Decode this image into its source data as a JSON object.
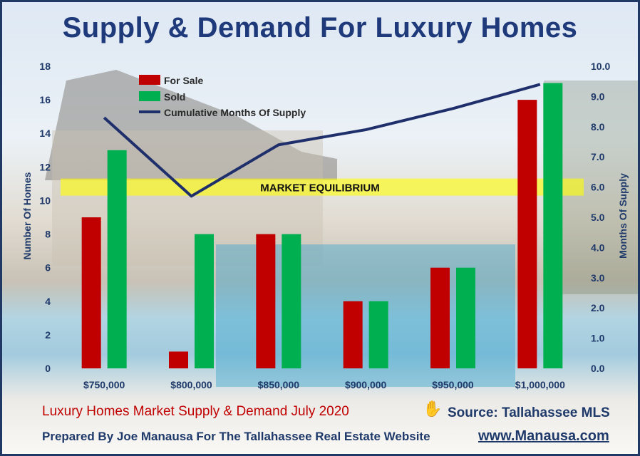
{
  "title": "Supply & Demand For Luxury Homes",
  "footer": {
    "line1": "Luxury Homes Market Supply & Demand July 2020",
    "source": "Source: Tallahassee MLS",
    "line2": "Prepared By Joe Manausa For The Tallahassee Real Estate Website",
    "website": "www.Manausa.com"
  },
  "equilibrium_label": "MARKET EQUILIBRIUM",
  "colors": {
    "for_sale": "#c00000",
    "sold": "#00b050",
    "line": "#1f2f6b",
    "band": "#ffff00",
    "title": "#1f3a7a"
  },
  "chart_data": {
    "type": "bar",
    "categories": [
      "$750,000",
      "$800,000",
      "$850,000",
      "$900,000",
      "$950,000",
      "$1,000,000"
    ],
    "series": [
      {
        "name": "For Sale",
        "values": [
          9,
          1,
          8,
          4,
          6,
          16
        ]
      },
      {
        "name": "Sold",
        "values": [
          13,
          8,
          8,
          4,
          6,
          17
        ]
      },
      {
        "name": "Cumulative Months Of Supply",
        "type": "line",
        "axis": "right",
        "values": [
          8.3,
          5.7,
          7.4,
          7.9,
          8.6,
          9.4
        ]
      }
    ],
    "ylabel": "Number Of Homes",
    "y2label": "Months Of Supply",
    "ylim": [
      0,
      18
    ],
    "y2lim": [
      0,
      10
    ],
    "yticks": [
      "0",
      "2",
      "4",
      "6",
      "8",
      "10",
      "12",
      "14",
      "16",
      "18"
    ],
    "y2ticks": [
      "0.0",
      "1.0",
      "2.0",
      "3.0",
      "4.0",
      "5.0",
      "6.0",
      "7.0",
      "8.0",
      "9.0",
      "10.0"
    ],
    "equilibrium_value": 6.0,
    "legend_position": "top-left",
    "grid": false
  }
}
